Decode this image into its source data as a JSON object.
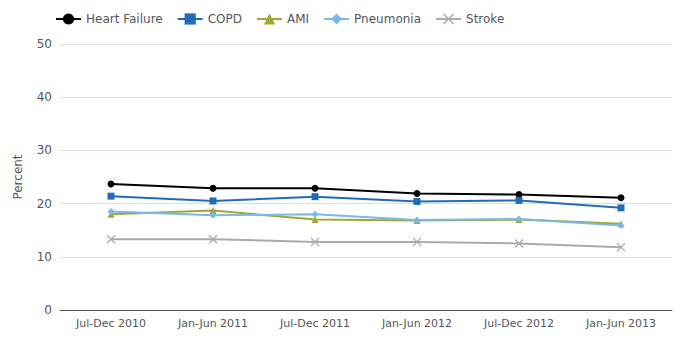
{
  "chart_data": {
    "type": "line",
    "categories": [
      "Jul-Dec 2010",
      "Jan-Jun 2011",
      "Jul-Dec 2011",
      "Jan-Jun 2012",
      "Jul-Dec 2012",
      "Jan-Jun 2013"
    ],
    "series": [
      {
        "name": "Heart Failure",
        "color": "#000000",
        "marker": "circle",
        "values": [
          23.7,
          22.9,
          22.9,
          21.9,
          21.7,
          21.1
        ]
      },
      {
        "name": "COPD",
        "color": "#1f6eb5",
        "marker": "square",
        "values": [
          21.4,
          20.5,
          21.3,
          20.4,
          20.6,
          19.2
        ]
      },
      {
        "name": "AMI",
        "color": "#9ea832",
        "marker": "triangle",
        "values": [
          18.0,
          18.7,
          17.0,
          16.8,
          17.0,
          16.2
        ]
      },
      {
        "name": "Pneumonia",
        "color": "#7ab8e8",
        "marker": "diamond",
        "values": [
          18.5,
          17.8,
          18.0,
          16.9,
          17.1,
          15.9
        ]
      },
      {
        "name": "Stroke",
        "color": "#aaaaaa",
        "marker": "x",
        "values": [
          13.3,
          13.3,
          12.8,
          12.8,
          12.5,
          11.8
        ]
      }
    ],
    "ylabel": "Percent",
    "ylim": [
      0,
      50
    ],
    "yticks": [
      0,
      10,
      20,
      30,
      40,
      50
    ],
    "grid": true,
    "legend": "upper left"
  }
}
